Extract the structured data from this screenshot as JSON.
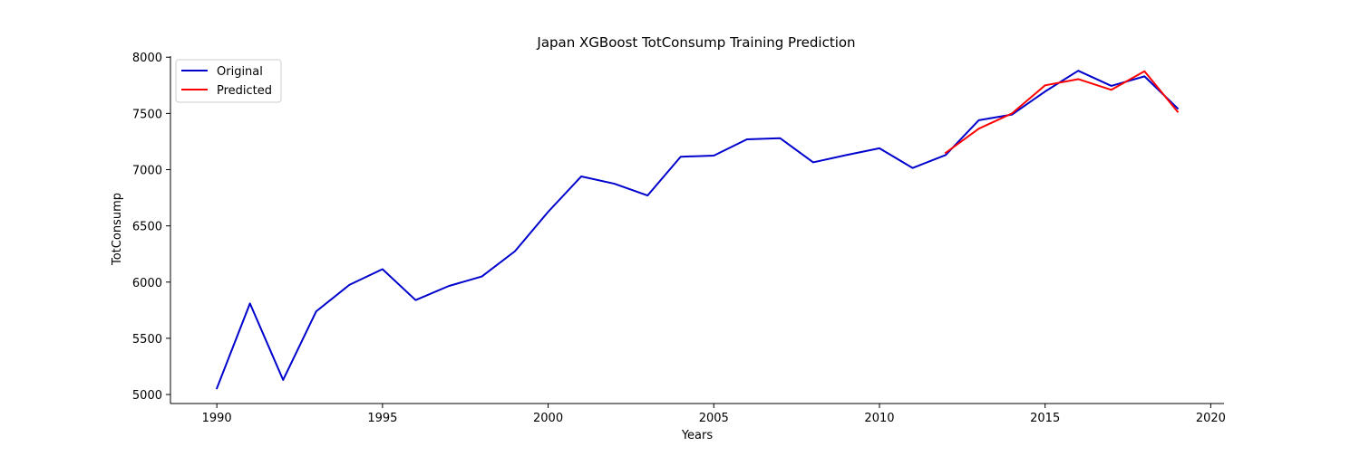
{
  "chart_data": {
    "type": "line",
    "title": "Japan XGBoost TotConsump Training Prediction",
    "xlabel": "Years",
    "ylabel": "TotConsump",
    "xlim": [
      1988.6,
      2020.4
    ],
    "ylim": [
      4920,
      8010
    ],
    "xticks": [
      1990,
      1995,
      2000,
      2005,
      2010,
      2015,
      2020
    ],
    "yticks": [
      5000,
      5500,
      6000,
      6500,
      7000,
      7500,
      8000
    ],
    "grid": false,
    "legend_position": "top-left",
    "series": [
      {
        "name": "Original",
        "color": "#0000cd",
        "x": [
          1990,
          1991,
          1992,
          1993,
          1994,
          1995,
          1996,
          1997,
          1998,
          1999,
          2000,
          2001,
          2002,
          2003,
          2004,
          2005,
          2006,
          2007,
          2008,
          2009,
          2010,
          2011,
          2012,
          2013,
          2014,
          2015,
          2016,
          2017,
          2018,
          2019
        ],
        "y": [
          5055,
          5810,
          5130,
          5740,
          5975,
          6115,
          5840,
          5965,
          6050,
          6275,
          6625,
          6940,
          6875,
          6770,
          7115,
          7125,
          7270,
          7280,
          7065,
          7130,
          7190,
          7015,
          7130,
          7440,
          7490,
          7695,
          7880,
          7745,
          7830,
          7545
        ]
      },
      {
        "name": "Predicted",
        "color": "#ff0000",
        "x": [
          2012,
          2013,
          2014,
          2015,
          2016,
          2017,
          2018,
          2019
        ],
        "y": [
          7150,
          7365,
          7500,
          7750,
          7805,
          7710,
          7875,
          7515
        ]
      }
    ]
  }
}
